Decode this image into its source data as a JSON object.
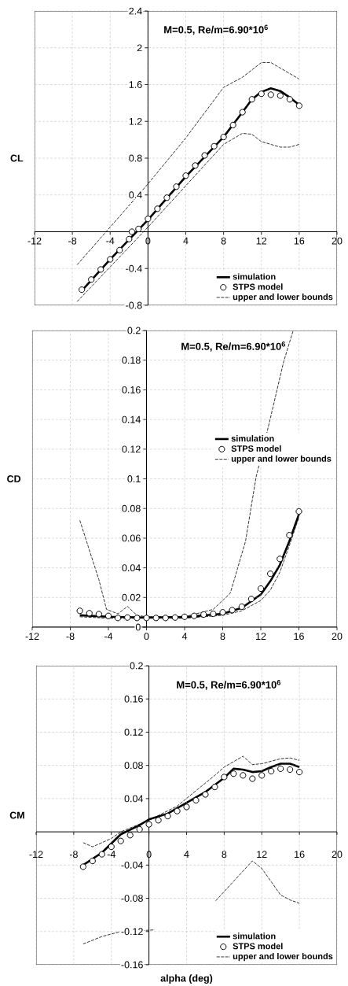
{
  "chart_data": [
    {
      "type": "line",
      "title": "M=0.5, Re/m=6.90*10$^{6}$",
      "ylabel": "CL",
      "xlim": [
        -12,
        20
      ],
      "ylim": [
        -0.8,
        2.4
      ],
      "xticks": [
        -12,
        -8,
        -4,
        0,
        4,
        8,
        12,
        16,
        20
      ],
      "yticks": [
        -0.8,
        -0.4,
        0.4,
        0.8,
        1.2,
        1.6,
        2,
        2.4
      ],
      "grid": true,
      "legend": "bottom right",
      "series": [
        {
          "name": "simulation",
          "type": "line",
          "color": "#000000",
          "marker": "none",
          "line_style": "solid",
          "x": [
            -7,
            -4,
            0,
            4,
            8,
            10,
            11,
            12,
            13,
            14,
            15,
            16
          ],
          "values": [
            -0.64,
            -0.3,
            0.13,
            0.6,
            1.03,
            1.3,
            1.44,
            1.52,
            1.56,
            1.53,
            1.46,
            1.38
          ]
        },
        {
          "name": "STPS model",
          "type": "scatter",
          "color": "#000000",
          "marker": "circle",
          "x": [
            -7,
            -6,
            -5,
            -4,
            -3,
            -2,
            -1.7,
            -1,
            0,
            1,
            2,
            3,
            4,
            5,
            6,
            7,
            8,
            9,
            10,
            11,
            12,
            13,
            14,
            15,
            16
          ],
          "values": [
            -0.63,
            -0.52,
            -0.41,
            -0.3,
            -0.2,
            -0.08,
            0.0,
            0.03,
            0.14,
            0.25,
            0.37,
            0.49,
            0.61,
            0.72,
            0.83,
            0.93,
            1.03,
            1.16,
            1.3,
            1.44,
            1.5,
            1.49,
            1.48,
            1.44,
            1.37
          ]
        },
        {
          "name": "upper and lower bounds",
          "type": "line",
          "color": "#000000",
          "marker": "none",
          "line_style": "dashed",
          "x": [
            -7.5,
            0,
            4,
            8,
            10,
            12,
            13,
            14,
            16
          ],
          "values": [
            -0.36,
            0.52,
            1.02,
            1.57,
            1.68,
            1.84,
            1.84,
            1.78,
            1.66
          ]
        },
        {
          "type": "line",
          "color": "#000000",
          "marker": "none",
          "line_style": "dashed",
          "x": [
            -7.5,
            0,
            4,
            8,
            10,
            11,
            12,
            14,
            15,
            16
          ],
          "values": [
            -0.76,
            0.05,
            0.5,
            0.95,
            1.07,
            1.06,
            0.98,
            0.92,
            0.92,
            0.95
          ]
        }
      ]
    },
    {
      "type": "line",
      "title": "M=0.5, Re/m=6.90*10$^{6}$",
      "ylabel": "CD",
      "xlim": [
        -12,
        20
      ],
      "ylim": [
        0,
        0.2
      ],
      "xticks": [
        -12,
        -8,
        -4,
        0,
        4,
        8,
        12,
        16,
        20
      ],
      "yticks": [
        0,
        0.02,
        0.04,
        0.06,
        0.08,
        0.1,
        0.12,
        0.14,
        0.16,
        0.18,
        0.2
      ],
      "grid": true,
      "legend": "right",
      "series": [
        {
          "name": "simulation",
          "type": "line",
          "color": "#000000",
          "marker": "none",
          "line_style": "solid",
          "x": [
            -7,
            -4,
            0,
            4,
            8,
            10,
            12,
            13,
            14,
            15,
            16
          ],
          "values": [
            0.008,
            0.007,
            0.0065,
            0.0068,
            0.009,
            0.013,
            0.022,
            0.031,
            0.042,
            0.058,
            0.076
          ]
        },
        {
          "name": "STPS model",
          "type": "scatter",
          "color": "#000000",
          "marker": "circle",
          "x": [
            -7,
            -6,
            -5,
            -4,
            -3,
            -2,
            -1,
            0,
            1,
            2,
            3,
            4,
            5,
            6,
            7,
            8,
            9,
            10,
            11,
            12,
            13,
            14,
            15,
            16
          ],
          "values": [
            0.011,
            0.0094,
            0.0088,
            0.0076,
            0.0062,
            0.0065,
            0.0062,
            0.0062,
            0.0062,
            0.0062,
            0.0065,
            0.007,
            0.0076,
            0.0085,
            0.009,
            0.01,
            0.0115,
            0.0138,
            0.019,
            0.026,
            0.036,
            0.046,
            0.062,
            0.078
          ]
        },
        {
          "name": "upper and lower bounds",
          "type": "line",
          "color": "#000000",
          "marker": "none",
          "line_style": "dashed",
          "x": [
            -7,
            -6,
            -5,
            -4.2,
            -3,
            -2,
            -1,
            0,
            4,
            7,
            8,
            8.8,
            10.4,
            11.5,
            12.9,
            14.4,
            15.4
          ],
          "values": [
            0.072,
            0.052,
            0.032,
            0.012,
            0.009,
            0.014,
            0.008,
            0.007,
            0.007,
            0.012,
            0.018,
            0.023,
            0.058,
            0.101,
            0.138,
            0.179,
            0.2
          ]
        },
        {
          "type": "line",
          "color": "#000000",
          "marker": "none",
          "line_style": "dashed",
          "x": [
            -7,
            -4,
            0,
            4,
            8,
            10,
            12,
            13,
            14,
            15,
            16
          ],
          "values": [
            0.007,
            0.006,
            0.006,
            0.006,
            0.008,
            0.011,
            0.018,
            0.025,
            0.037,
            0.055,
            0.074
          ]
        }
      ]
    },
    {
      "type": "line",
      "title": "M=0.5, Re/m=6.90*10$^{6}$",
      "ylabel": "CM",
      "xlabel": "alpha (deg)",
      "xlim": [
        -12,
        20
      ],
      "ylim": [
        -0.16,
        0.2
      ],
      "xticks": [
        -12,
        -8,
        -4,
        0,
        4,
        8,
        12,
        16,
        20
      ],
      "yticks": [
        -0.16,
        -0.12,
        -0.08,
        -0.04,
        0.04,
        0.08,
        0.12,
        0.16,
        0.2
      ],
      "grid": true,
      "legend": "bottom right",
      "series": [
        {
          "name": "simulation",
          "type": "line",
          "color": "#000000",
          "marker": "none",
          "line_style": "solid",
          "x": [
            -7,
            -5,
            -3,
            -1,
            0,
            2,
            4,
            6,
            8,
            9,
            10,
            11,
            12,
            13,
            14,
            15,
            16
          ],
          "values": [
            -0.04,
            -0.025,
            -0.003,
            0.008,
            0.015,
            0.022,
            0.035,
            0.048,
            0.065,
            0.076,
            0.075,
            0.072,
            0.073,
            0.078,
            0.082,
            0.082,
            0.078
          ]
        },
        {
          "name": "STPS model",
          "type": "scatter",
          "color": "#000000",
          "marker": "circle",
          "x": [
            -7,
            -6,
            -5,
            -4,
            -3,
            -2,
            -1,
            0,
            1,
            2,
            3,
            4,
            5,
            6,
            7,
            8,
            9,
            10,
            11,
            12,
            13,
            14,
            15,
            16
          ],
          "values": [
            -0.042,
            -0.035,
            -0.027,
            -0.018,
            -0.011,
            -0.004,
            0.003,
            0.009,
            0.014,
            0.019,
            0.025,
            0.03,
            0.038,
            0.045,
            0.054,
            0.066,
            0.07,
            0.068,
            0.064,
            0.068,
            0.073,
            0.076,
            0.075,
            0.072
          ]
        },
        {
          "name": "upper and lower bounds",
          "type": "line",
          "color": "#000000",
          "marker": "none",
          "line_style": "dashed",
          "x": [
            -7,
            -6,
            -4,
            -3,
            0,
            3,
            7,
            8,
            10,
            11,
            12,
            14,
            15,
            16
          ],
          "values": [
            -0.013,
            -0.018,
            -0.008,
            0.0,
            0.014,
            0.031,
            0.068,
            0.078,
            0.091,
            0.081,
            0.082,
            0.088,
            0.089,
            0.086
          ]
        },
        {
          "type": "line",
          "color": "#000000",
          "marker": "none",
          "line_style": "dashed",
          "x": [
            -7,
            -5,
            -3,
            -1,
            0.6,
            4,
            7.1,
            11,
            12,
            13,
            14,
            15,
            16
          ],
          "values": [
            -0.135,
            -0.126,
            -0.12,
            -0.119,
            -0.118,
            null,
            -0.083,
            -0.035,
            -0.044,
            -0.06,
            -0.076,
            -0.082,
            -0.086
          ]
        }
      ]
    }
  ]
}
